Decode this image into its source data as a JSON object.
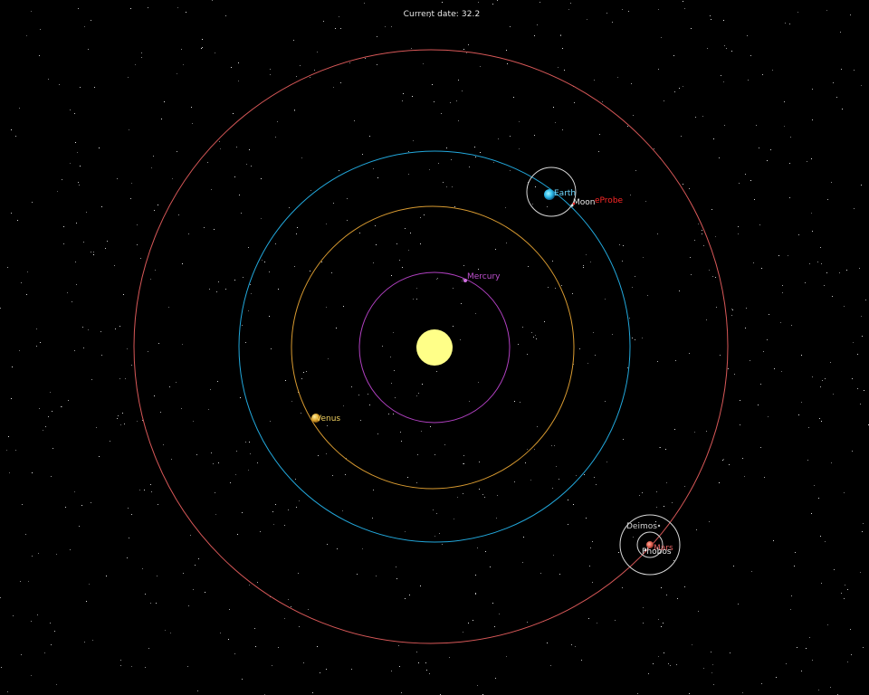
{
  "header": {
    "date_label": "Current date:",
    "date_value": "32.2"
  },
  "colors": {
    "background": "#000000",
    "sun": "#ffff80",
    "mercury_orbit": "#b040c0",
    "venus_orbit": "#e0a030",
    "earth_orbit": "#20a8e0",
    "mars_orbit": "#e05050",
    "moon_orbit": "#d8d8d8",
    "probe": "#ff2020"
  },
  "bodies": {
    "sun": {
      "name": ""
    },
    "mercury": {
      "name": "Mercury"
    },
    "venus": {
      "name": "Venus"
    },
    "earth": {
      "name": "Earth"
    },
    "moon": {
      "name": "Moon"
    },
    "probe": {
      "name": "eProbe"
    },
    "mars": {
      "name": "Mars"
    },
    "deimos": {
      "name": "Deimos"
    },
    "phobos": {
      "name": "Phobos"
    }
  }
}
